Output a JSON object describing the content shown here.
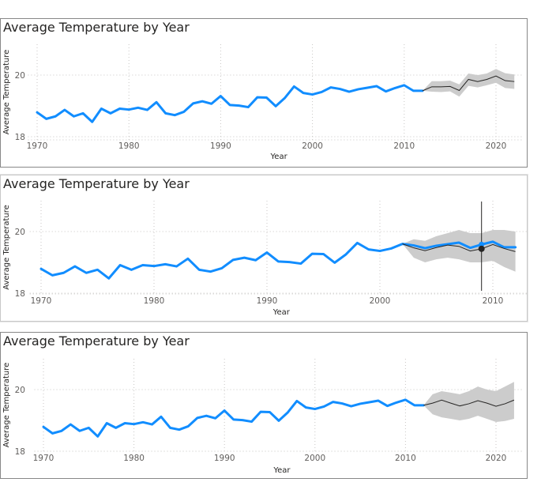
{
  "chart_data": [
    {
      "type": "line",
      "title": "Average Temperature by Year",
      "xlabel": "Year",
      "ylabel": "Average Temperature",
      "xlim": [
        1969,
        2023
      ],
      "ylim": [
        18,
        21
      ],
      "xticks": [
        1970,
        1980,
        1990,
        2000,
        2010,
        2020
      ],
      "yticks": [
        18,
        20
      ],
      "grid": true,
      "series": [
        {
          "x": [
            1970,
            1971,
            1972,
            1973,
            1974,
            1975,
            1976,
            1977,
            1978,
            1979,
            1980,
            1981,
            1982,
            1983,
            1984,
            1985,
            1986,
            1987,
            1988,
            1989,
            1990,
            1991,
            1992,
            1993,
            1994,
            1995,
            1996,
            1997,
            1998,
            1999,
            2000,
            2001,
            2002,
            2003,
            2004,
            2005,
            2006,
            2007,
            2008,
            2009,
            2010,
            2011,
            2012
          ],
          "values": [
            18.79,
            18.58,
            18.66,
            18.87,
            18.66,
            18.76,
            18.48,
            18.91,
            18.76,
            18.91,
            18.88,
            18.94,
            18.87,
            19.12,
            18.76,
            18.7,
            18.81,
            19.08,
            19.15,
            19.07,
            19.32,
            19.03,
            19.01,
            18.96,
            19.28,
            19.27,
            18.99,
            19.26,
            19.63,
            19.42,
            19.37,
            19.45,
            19.6,
            19.55,
            19.46,
            19.54,
            19.59,
            19.64,
            19.47,
            19.58,
            19.67,
            19.49,
            19.49
          ]
        },
        {
          "x": [
            2012,
            2013,
            2014,
            2015,
            2016,
            2017,
            2018,
            2019,
            2020,
            2021,
            2022
          ],
          "values": [
            19.49,
            19.62,
            19.62,
            19.63,
            19.5,
            19.86,
            19.79,
            19.86,
            19.97,
            19.82,
            19.79
          ],
          "lower": [
            19.49,
            19.46,
            19.45,
            19.47,
            19.3,
            19.65,
            19.6,
            19.67,
            19.75,
            19.58,
            19.55
          ],
          "upper": [
            19.49,
            19.8,
            19.8,
            19.82,
            19.7,
            20.05,
            20.0,
            20.05,
            20.2,
            20.06,
            20.02
          ]
        }
      ]
    },
    {
      "type": "line",
      "title": "Average Temperature by Year",
      "xlabel": "Year",
      "ylabel": "Average Temperature",
      "xlim": [
        1969,
        2013
      ],
      "ylim": [
        18,
        21
      ],
      "xticks": [
        1970,
        1980,
        1990,
        2000,
        2010
      ],
      "yticks": [
        18,
        20
      ],
      "grid": true,
      "series": [
        {
          "x": [
            1970,
            1971,
            1972,
            1973,
            1974,
            1975,
            1976,
            1977,
            1978,
            1979,
            1980,
            1981,
            1982,
            1983,
            1984,
            1985,
            1986,
            1987,
            1988,
            1989,
            1990,
            1991,
            1992,
            1993,
            1994,
            1995,
            1996,
            1997,
            1998,
            1999,
            2000,
            2001,
            2002,
            2003,
            2004,
            2005,
            2006,
            2007,
            2008,
            2009,
            2010,
            2011,
            2012
          ],
          "values": [
            18.79,
            18.58,
            18.66,
            18.87,
            18.66,
            18.76,
            18.48,
            18.91,
            18.76,
            18.91,
            18.88,
            18.94,
            18.87,
            19.12,
            18.76,
            18.7,
            18.81,
            19.08,
            19.15,
            19.07,
            19.32,
            19.03,
            19.01,
            18.96,
            19.28,
            19.27,
            18.99,
            19.26,
            19.63,
            19.42,
            19.37,
            19.45,
            19.6,
            19.55,
            19.46,
            19.54,
            19.59,
            19.64,
            19.47,
            19.58,
            19.67,
            19.49,
            19.49
          ]
        },
        {
          "x": [
            2002,
            2003,
            2004,
            2005,
            2006,
            2007,
            2008,
            2009,
            2010,
            2011,
            2012
          ],
          "values": [
            19.6,
            19.47,
            19.38,
            19.48,
            19.56,
            19.52,
            19.37,
            19.44,
            19.58,
            19.45,
            19.35
          ],
          "lower": [
            19.6,
            19.15,
            19.0,
            19.1,
            19.15,
            19.1,
            19.0,
            19.0,
            19.05,
            18.85,
            18.7
          ],
          "upper": [
            19.6,
            19.75,
            19.7,
            19.85,
            19.95,
            20.05,
            19.95,
            19.95,
            20.05,
            20.05,
            20.0
          ]
        }
      ],
      "highlight": {
        "x": 2009,
        "value": 19.44
      }
    },
    {
      "type": "line",
      "title": "Average Temperature by Year",
      "xlabel": "Year",
      "ylabel": "Average Temperature",
      "xlim": [
        1969,
        2023
      ],
      "ylim": [
        18,
        21
      ],
      "xticks": [
        1970,
        1980,
        1990,
        2000,
        2010,
        2020
      ],
      "yticks": [
        18,
        20
      ],
      "grid": true,
      "series": [
        {
          "x": [
            1970,
            1971,
            1972,
            1973,
            1974,
            1975,
            1976,
            1977,
            1978,
            1979,
            1980,
            1981,
            1982,
            1983,
            1984,
            1985,
            1986,
            1987,
            1988,
            1989,
            1990,
            1991,
            1992,
            1993,
            1994,
            1995,
            1996,
            1997,
            1998,
            1999,
            2000,
            2001,
            2002,
            2003,
            2004,
            2005,
            2006,
            2007,
            2008,
            2009,
            2010,
            2011,
            2012
          ],
          "values": [
            18.79,
            18.58,
            18.66,
            18.87,
            18.66,
            18.76,
            18.48,
            18.91,
            18.76,
            18.91,
            18.88,
            18.94,
            18.87,
            19.12,
            18.76,
            18.7,
            18.81,
            19.08,
            19.15,
            19.07,
            19.32,
            19.03,
            19.01,
            18.96,
            19.28,
            19.27,
            18.99,
            19.26,
            19.63,
            19.42,
            19.37,
            19.45,
            19.6,
            19.55,
            19.46,
            19.54,
            19.59,
            19.64,
            19.47,
            19.58,
            19.67,
            19.49,
            19.49
          ]
        },
        {
          "x": [
            2012,
            2013,
            2014,
            2015,
            2016,
            2017,
            2018,
            2019,
            2020,
            2021,
            2022
          ],
          "values": [
            19.49,
            19.56,
            19.66,
            19.56,
            19.47,
            19.54,
            19.64,
            19.56,
            19.46,
            19.54,
            19.66
          ],
          "lower": [
            19.49,
            19.2,
            19.1,
            19.05,
            19.0,
            19.05,
            19.15,
            19.05,
            18.95,
            18.98,
            19.05
          ],
          "upper": [
            19.49,
            19.85,
            19.95,
            19.9,
            19.85,
            19.95,
            20.1,
            20.0,
            19.95,
            20.1,
            20.25
          ]
        }
      ]
    }
  ],
  "colors": {
    "actual": "#118dff",
    "forecast": "#252423",
    "band": "#cccccc",
    "crosshair": "#252423",
    "grid": "#c8c6c4"
  }
}
